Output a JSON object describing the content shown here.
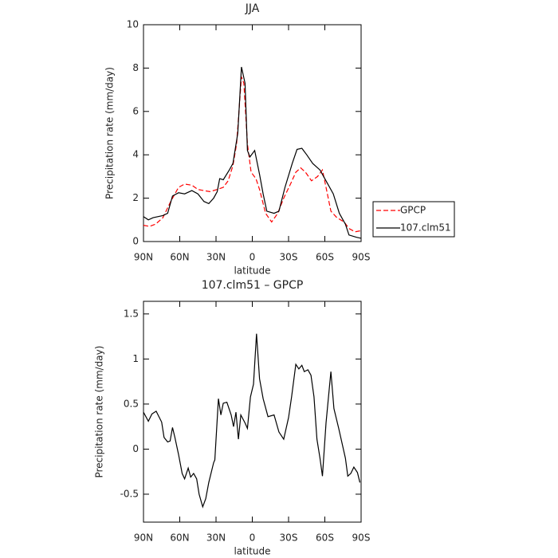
{
  "chart_data": [
    {
      "type": "line",
      "title": "JJA",
      "x_label": "latitude",
      "y_label": "Precipitation rate (mm/day)",
      "xlim": [
        90,
        -90
      ],
      "xticks": [
        {
          "value": 90,
          "label": "90N"
        },
        {
          "value": 60,
          "label": "60N"
        },
        {
          "value": 30,
          "label": "30N"
        },
        0,
        {
          "value": -30,
          "label": "30S"
        },
        {
          "value": -60,
          "label": "60S"
        },
        {
          "value": -90,
          "label": "90S"
        }
      ],
      "ylim": [
        0,
        10
      ],
      "yticks": [
        0,
        2,
        4,
        6,
        8,
        10
      ],
      "legend": "right",
      "series": [
        {
          "name": "GPCP",
          "color": "#ff0000",
          "dash": true,
          "x": [
            90,
            85,
            80,
            74,
            67,
            61,
            56,
            50,
            45,
            40,
            35,
            29,
            24,
            20,
            16,
            13,
            9,
            7,
            4,
            1,
            -3,
            -6,
            -11,
            -16,
            -21,
            -26,
            -32,
            -36,
            -40,
            -44,
            -49,
            -54,
            -58,
            -61,
            -65,
            -70,
            -76,
            -80,
            -85,
            -90
          ],
          "values": [
            0.75,
            0.7,
            0.8,
            1.1,
            1.9,
            2.5,
            2.65,
            2.6,
            2.4,
            2.35,
            2.3,
            2.4,
            2.5,
            2.8,
            3.5,
            4.5,
            7.6,
            7.3,
            4.5,
            3.2,
            2.9,
            2.4,
            1.3,
            0.9,
            1.3,
            2.0,
            2.7,
            3.2,
            3.4,
            3.2,
            2.8,
            3.0,
            3.3,
            2.5,
            1.4,
            1.1,
            0.9,
            0.6,
            0.45,
            0.5
          ]
        },
        {
          "name": "107.clm51",
          "color": "#000000",
          "dash": false,
          "x": [
            90,
            86,
            82,
            74,
            70,
            66,
            61,
            56,
            50,
            45,
            40,
            36,
            32,
            29,
            27,
            24,
            19,
            16,
            12,
            9,
            6,
            4,
            2,
            -2,
            -6,
            -9,
            -12,
            -18,
            -22,
            -27,
            -33,
            -37,
            -41,
            -45,
            -50,
            -56,
            -62,
            -67,
            -72,
            -77,
            -80,
            -86,
            -90
          ],
          "values": [
            1.15,
            1.0,
            1.1,
            1.2,
            1.3,
            2.1,
            2.25,
            2.2,
            2.35,
            2.2,
            1.85,
            1.75,
            2.0,
            2.3,
            2.9,
            2.85,
            3.3,
            3.6,
            5.0,
            8.05,
            7.3,
            4.2,
            3.9,
            4.2,
            3.1,
            2.2,
            1.4,
            1.3,
            1.4,
            2.5,
            3.6,
            4.25,
            4.3,
            4.0,
            3.6,
            3.3,
            2.7,
            2.2,
            1.3,
            0.8,
            0.3,
            0.2,
            0.15
          ]
        }
      ]
    },
    {
      "type": "line",
      "title": "107.clm51 – GPCP",
      "x_label": "latitude",
      "y_label": "Precipitation rate (mm/day)",
      "xlim": [
        90,
        -90
      ],
      "xticks": [
        {
          "value": 90,
          "label": "90N"
        },
        {
          "value": 60,
          "label": "60N"
        },
        {
          "value": 30,
          "label": "30N"
        },
        0,
        {
          "value": -30,
          "label": "30S"
        },
        {
          "value": -60,
          "label": "60S"
        },
        {
          "value": -90,
          "label": "90S"
        }
      ],
      "ylim": [
        -0.81,
        1.64
      ],
      "yticks": [
        -0.5,
        0.0,
        0.5,
        1.0,
        1.5
      ],
      "color": "#000000",
      "x": [
        90,
        86,
        83,
        79.5,
        75,
        73,
        70,
        68,
        66,
        64,
        61,
        58,
        56,
        53,
        51,
        48.5,
        46,
        44,
        41,
        38.5,
        36,
        32,
        31,
        28,
        26,
        24,
        21,
        17.5,
        15.5,
        13.5,
        11.5,
        9.5,
        6,
        4,
        1.5,
        -1,
        -3.5,
        -6,
        -9,
        -13,
        -18,
        -22,
        -26,
        -30,
        -32.5,
        -36,
        -38.5,
        -41,
        -43,
        -46,
        -48.5,
        -51,
        -53.5,
        -56,
        -58,
        -61,
        -65,
        -67.5,
        -71.5,
        -77,
        -79,
        -81.5,
        -84,
        -87,
        -89
      ],
      "values": [
        0.41,
        0.31,
        0.39,
        0.42,
        0.3,
        0.13,
        0.08,
        0.09,
        0.24,
        0.13,
        -0.06,
        -0.27,
        -0.33,
        -0.21,
        -0.31,
        -0.27,
        -0.33,
        -0.5,
        -0.64,
        -0.55,
        -0.37,
        -0.15,
        -0.12,
        0.56,
        0.38,
        0.51,
        0.52,
        0.38,
        0.25,
        0.41,
        0.11,
        0.38,
        0.29,
        0.23,
        0.58,
        0.72,
        1.28,
        0.78,
        0.56,
        0.36,
        0.38,
        0.19,
        0.11,
        0.35,
        0.58,
        0.94,
        0.89,
        0.93,
        0.86,
        0.88,
        0.82,
        0.58,
        0.11,
        -0.1,
        -0.3,
        0.29,
        0.86,
        0.45,
        0.23,
        -0.1,
        -0.3,
        -0.27,
        -0.2,
        -0.26,
        -0.37
      ]
    }
  ]
}
